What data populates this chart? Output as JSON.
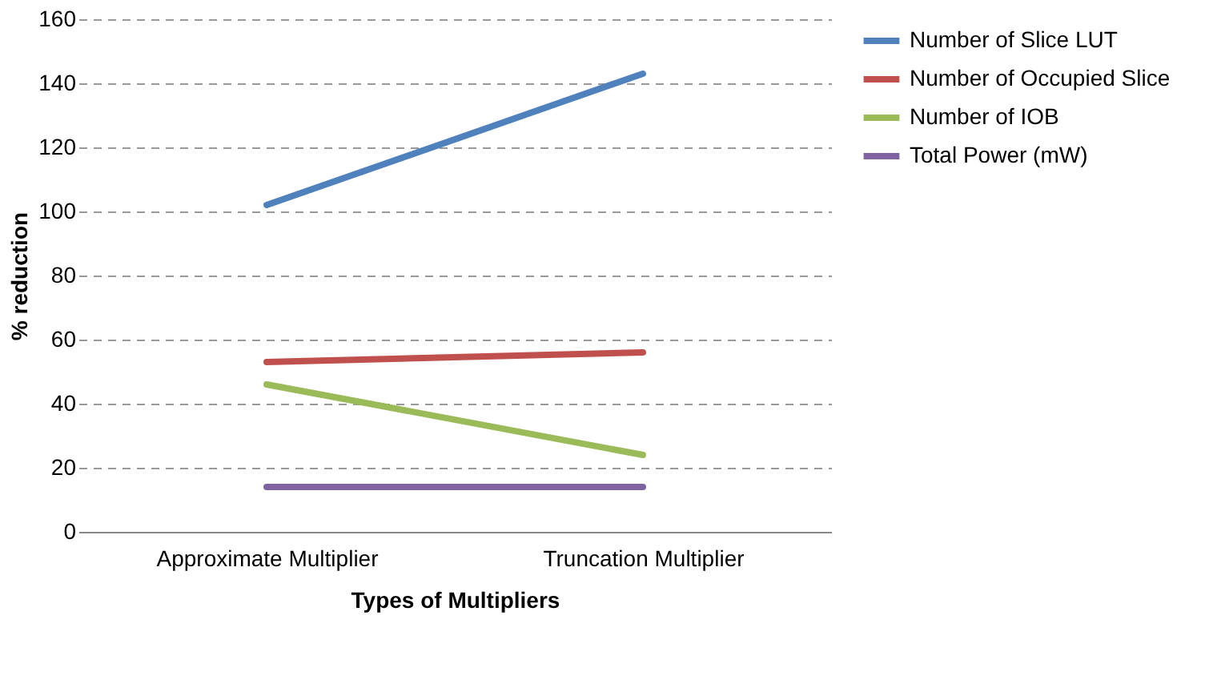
{
  "chart_data": {
    "type": "line",
    "xlabel": "Types of Multipliers",
    "ylabel": "% reduction",
    "categories": [
      "Approximate Multiplier",
      "Truncation Multiplier"
    ],
    "series": [
      {
        "name": "Number of Slice LUT",
        "color": "#4f81bd",
        "values": [
          102,
          143
        ]
      },
      {
        "name": "Number of Occupied Slice",
        "color": "#c0504d",
        "values": [
          53,
          56
        ]
      },
      {
        "name": "Number of IOB",
        "color": "#9bbb59",
        "values": [
          46,
          24
        ]
      },
      {
        "name": "Total Power (mW)",
        "color": "#8064a2",
        "values": [
          14,
          14
        ]
      }
    ],
    "ylim": [
      0,
      160
    ],
    "yticks": [
      0,
      20,
      40,
      60,
      80,
      100,
      120,
      140,
      160
    ],
    "grid": "y",
    "legend": "right",
    "marker": "none",
    "line_style": "solid"
  }
}
